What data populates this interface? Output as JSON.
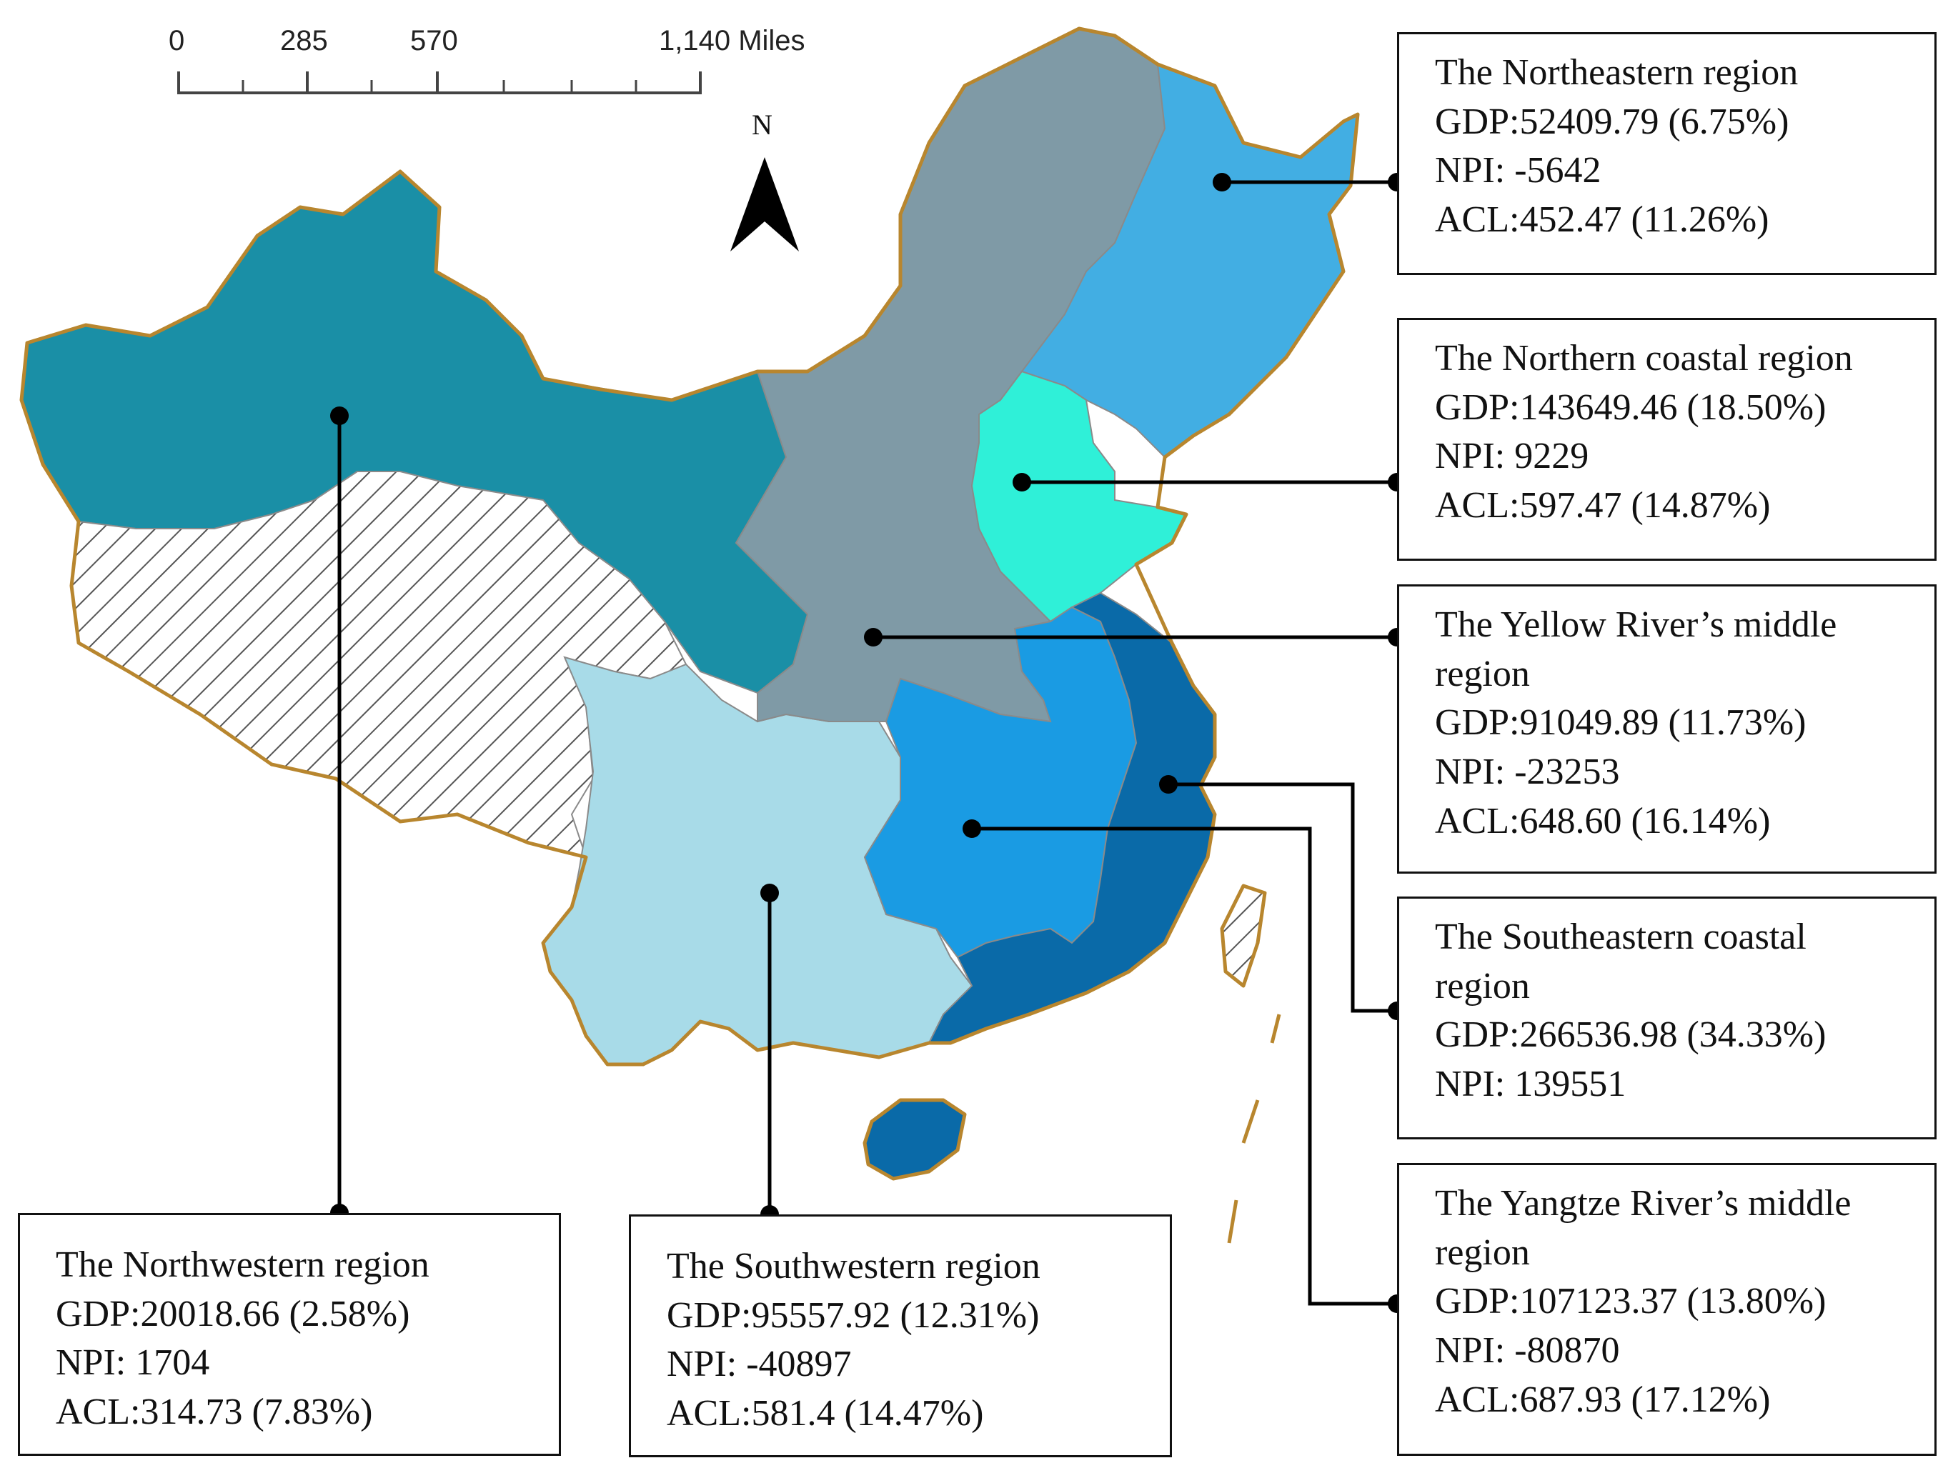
{
  "scale_bar": {
    "ticks": [
      "0",
      "285",
      "570",
      "1,140 Miles"
    ]
  },
  "north_arrow": {
    "label": "N"
  },
  "colors": {
    "northwestern": "#1a8fa6",
    "northern_coastal": "#2ff0d8",
    "yellow_river_middle": "#7f9aa6",
    "northeastern": "#42aee3",
    "southwestern": "#a8dbe8",
    "yangtze_river_middle": "#1a9be3",
    "southeastern_coastal": "#0a6aa8",
    "hatched_region": "#ffffff",
    "coastline": "#b8862e"
  },
  "regions": {
    "northeastern": {
      "title": "The Northeastern region",
      "gdp": "GDP:52409.79 (6.75%)",
      "npi": "NPI: -5642",
      "acl": "ACL:452.47 (11.26%)"
    },
    "northern_coastal": {
      "title": "The Northern coastal region",
      "gdp": "GDP:143649.46 (18.50%)",
      "npi": "NPI: 9229",
      "acl": "ACL:597.47 (14.87%)"
    },
    "yellow_river_middle": {
      "title": "The Yellow River’s middle region",
      "gdp": "GDP:91049.89 (11.73%)",
      "npi": "NPI: -23253",
      "acl": "ACL:648.60 (16.14%)"
    },
    "southeastern_coastal": {
      "title": "The Southeastern coastal region",
      "gdp": "GDP:266536.98 (34.33%)",
      "npi": "NPI: 139551"
    },
    "yangtze_river_middle": {
      "title": "The Yangtze River’s middle region",
      "gdp": "GDP:107123.37 (13.80%)",
      "npi": "NPI: -80870",
      "acl": "ACL:687.93 (17.12%)"
    },
    "northwestern": {
      "title": "The Northwestern region",
      "gdp": "GDP:20018.66 (2.58%)",
      "npi": "NPI: 1704",
      "acl": "ACL:314.73 (7.83%)"
    },
    "southwestern": {
      "title": "The Southwestern region",
      "gdp": "GDP:95557.92 (12.31%)",
      "npi": "NPI: -40897",
      "acl": "ACL:581.4 (14.47%)"
    }
  }
}
